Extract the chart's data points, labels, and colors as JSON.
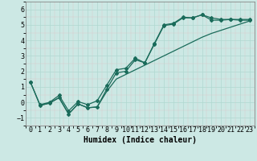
{
  "xlabel": "Humidex (Indice chaleur)",
  "background_color": "#cce8e4",
  "line_color": "#1a6b5a",
  "grid_color": "#b0d8d0",
  "xlim": [
    -0.5,
    23.5
  ],
  "ylim": [
    -1.5,
    6.5
  ],
  "xticks": [
    0,
    1,
    2,
    3,
    4,
    5,
    6,
    7,
    8,
    9,
    10,
    11,
    12,
    13,
    14,
    15,
    16,
    17,
    18,
    19,
    20,
    21,
    22,
    23
  ],
  "yticks": [
    -1,
    0,
    1,
    2,
    3,
    4,
    5,
    6
  ],
  "line1_x": [
    0,
    1,
    2,
    3,
    4,
    5,
    6,
    7,
    8,
    9,
    10,
    11,
    12,
    13,
    14,
    15,
    16,
    17,
    18,
    19,
    20,
    21,
    22,
    23
  ],
  "line1_y": [
    1.3,
    -0.2,
    -0.05,
    0.3,
    -0.75,
    -0.1,
    -0.35,
    -0.3,
    0.85,
    1.9,
    2.0,
    2.75,
    2.55,
    3.8,
    5.0,
    5.1,
    5.5,
    5.45,
    5.65,
    5.3,
    5.3,
    5.35,
    5.3,
    5.3
  ],
  "line2_x": [
    1,
    2,
    3,
    4,
    5,
    6,
    7,
    8,
    9,
    10,
    11,
    12,
    13,
    14,
    15,
    16,
    17,
    18,
    19,
    20,
    21,
    22,
    23
  ],
  "line2_y": [
    -0.2,
    -0.05,
    0.3,
    -0.75,
    -0.1,
    -0.35,
    -0.3,
    0.7,
    1.5,
    1.8,
    2.1,
    2.4,
    2.7,
    3.0,
    3.3,
    3.6,
    3.9,
    4.2,
    4.45,
    4.65,
    4.85,
    5.05,
    5.25
  ],
  "line3_x": [
    0,
    1,
    2,
    3,
    4,
    5,
    6,
    7,
    8,
    9,
    10,
    11,
    12,
    13,
    14,
    15,
    16,
    17,
    18,
    19,
    20,
    21,
    22,
    23
  ],
  "line3_y": [
    1.3,
    -0.15,
    -0.0,
    0.45,
    -0.55,
    0.05,
    -0.15,
    0.1,
    1.1,
    2.1,
    2.2,
    2.85,
    2.55,
    3.75,
    4.95,
    5.05,
    5.45,
    5.45,
    5.65,
    5.45,
    5.35,
    5.35,
    5.35,
    5.35
  ],
  "marker": "D",
  "marker_size": 2.0,
  "line_width": 0.9,
  "font_family": "monospace",
  "xlabel_fontsize": 7,
  "tick_fontsize": 6
}
